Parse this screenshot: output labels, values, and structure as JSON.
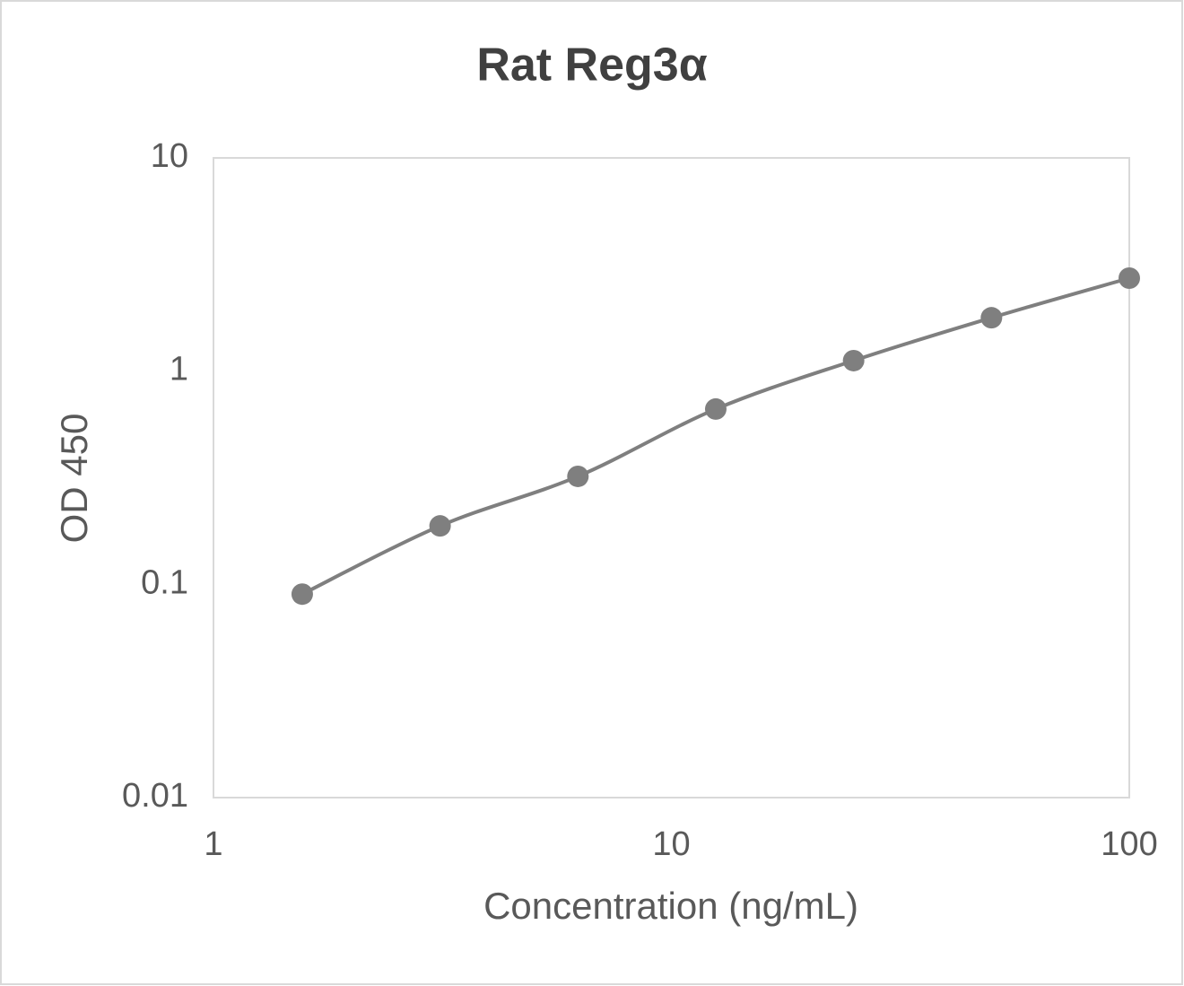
{
  "chart_data": {
    "type": "line",
    "title": "Rat Reg3α",
    "x_label": "Concentration (ng/mL)",
    "y_label": "OD 450",
    "x": [
      1.5625,
      3.125,
      6.25,
      12.5,
      25,
      50,
      100
    ],
    "series": [
      {
        "color": "#7f7f7f",
        "values": [
          0.09,
          0.188,
          0.321,
          0.664,
          1.12,
          1.78,
          2.73
        ]
      }
    ],
    "xlim": [
      1,
      100
    ],
    "xticks": [
      1,
      10,
      100
    ],
    "x_log": true,
    "ylim": [
      0.01,
      10
    ],
    "yticks": [
      0.01,
      0.1,
      1,
      10
    ],
    "y_log": true,
    "smooth": true,
    "grid": false
  }
}
